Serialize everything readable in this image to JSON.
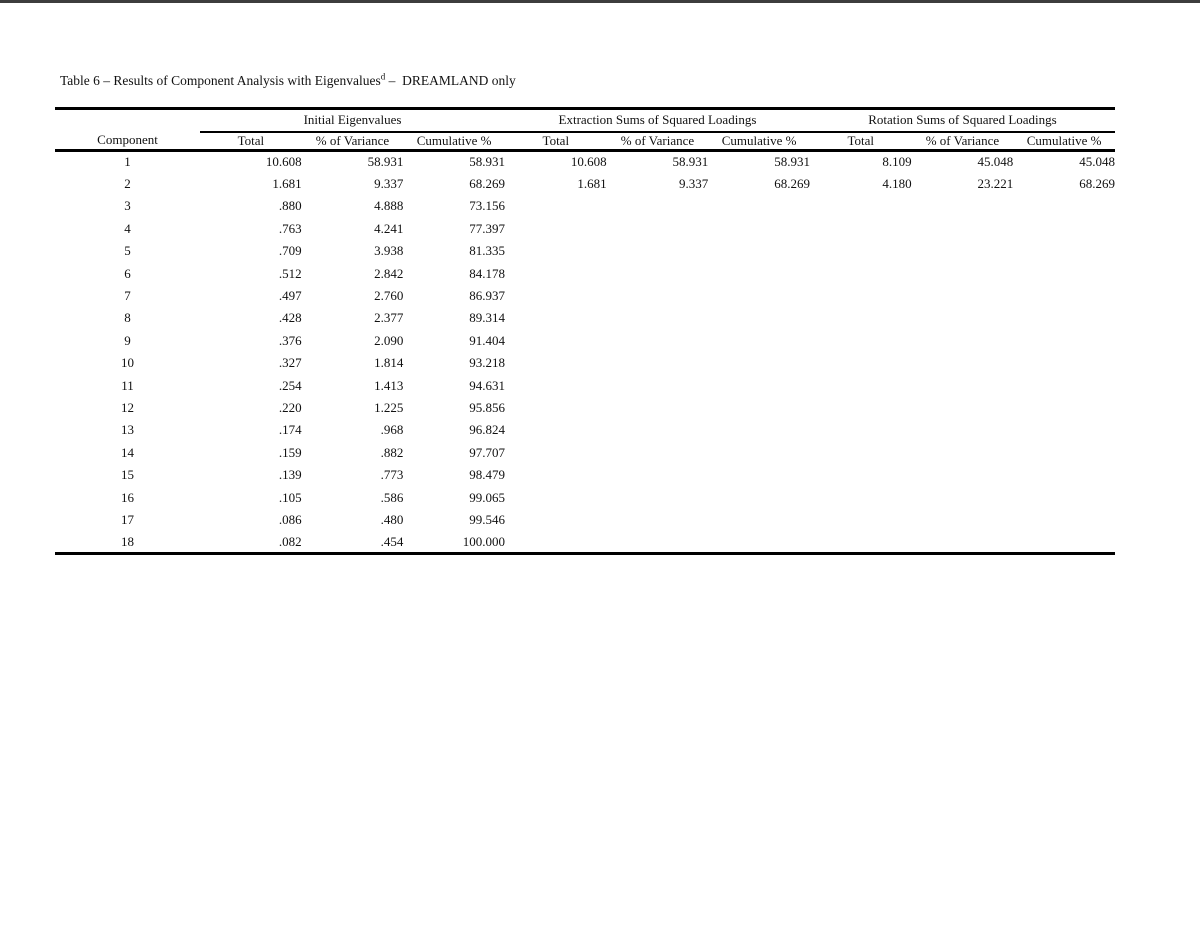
{
  "page": {
    "background": "#ffffff",
    "top_bar_color": "#3d3d3d",
    "text_color": "#111111"
  },
  "title": {
    "prefix": "Table 6 – Results of Component Analysis with Eigenvalues",
    "superscript": "d",
    "suffix": " –  DREAMLAND only"
  },
  "table": {
    "row_header": "Component",
    "groups": [
      {
        "label": "Initial Eigenvalues",
        "columns": [
          "Total",
          "% of Variance",
          "Cumulative %"
        ]
      },
      {
        "label": "Extraction Sums of Squared Loadings",
        "columns": [
          "Total",
          "% of Variance",
          "Cumulative %"
        ]
      },
      {
        "label": "Rotation Sums of Squared Loadings",
        "columns": [
          "Total",
          "% of Variance",
          "Cumulative %"
        ]
      }
    ],
    "rows": [
      {
        "component": "1",
        "values": [
          "10.608",
          "58.931",
          "58.931",
          "10.608",
          "58.931",
          "58.931",
          "8.109",
          "45.048",
          "45.048"
        ]
      },
      {
        "component": "2",
        "values": [
          "1.681",
          "9.337",
          "68.269",
          "1.681",
          "9.337",
          "68.269",
          "4.180",
          "23.221",
          "68.269"
        ]
      },
      {
        "component": "3",
        "values": [
          ".880",
          "4.888",
          "73.156",
          "",
          "",
          "",
          "",
          "",
          ""
        ]
      },
      {
        "component": "4",
        "values": [
          ".763",
          "4.241",
          "77.397",
          "",
          "",
          "",
          "",
          "",
          ""
        ]
      },
      {
        "component": "5",
        "values": [
          ".709",
          "3.938",
          "81.335",
          "",
          "",
          "",
          "",
          "",
          ""
        ]
      },
      {
        "component": "6",
        "values": [
          ".512",
          "2.842",
          "84.178",
          "",
          "",
          "",
          "",
          "",
          ""
        ]
      },
      {
        "component": "7",
        "values": [
          ".497",
          "2.760",
          "86.937",
          "",
          "",
          "",
          "",
          "",
          ""
        ]
      },
      {
        "component": "8",
        "values": [
          ".428",
          "2.377",
          "89.314",
          "",
          "",
          "",
          "",
          "",
          ""
        ]
      },
      {
        "component": "9",
        "values": [
          ".376",
          "2.090",
          "91.404",
          "",
          "",
          "",
          "",
          "",
          ""
        ]
      },
      {
        "component": "10",
        "values": [
          ".327",
          "1.814",
          "93.218",
          "",
          "",
          "",
          "",
          "",
          ""
        ]
      },
      {
        "component": "11",
        "values": [
          ".254",
          "1.413",
          "94.631",
          "",
          "",
          "",
          "",
          "",
          ""
        ]
      },
      {
        "component": "12",
        "values": [
          ".220",
          "1.225",
          "95.856",
          "",
          "",
          "",
          "",
          "",
          ""
        ]
      },
      {
        "component": "13",
        "values": [
          ".174",
          ".968",
          "96.824",
          "",
          "",
          "",
          "",
          "",
          ""
        ]
      },
      {
        "component": "14",
        "values": [
          ".159",
          ".882",
          "97.707",
          "",
          "",
          "",
          "",
          "",
          ""
        ]
      },
      {
        "component": "15",
        "values": [
          ".139",
          ".773",
          "98.479",
          "",
          "",
          "",
          "",
          "",
          ""
        ]
      },
      {
        "component": "16",
        "values": [
          ".105",
          ".586",
          "99.065",
          "",
          "",
          "",
          "",
          "",
          ""
        ]
      },
      {
        "component": "17",
        "values": [
          ".086",
          ".480",
          "99.546",
          "",
          "",
          "",
          "",
          "",
          ""
        ]
      },
      {
        "component": "18",
        "values": [
          ".082",
          ".454",
          "100.000",
          "",
          "",
          "",
          "",
          "",
          ""
        ]
      }
    ]
  }
}
